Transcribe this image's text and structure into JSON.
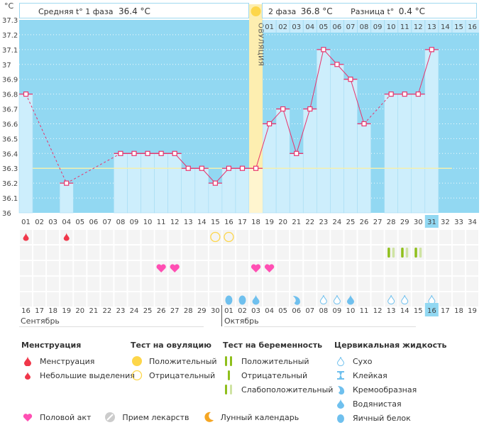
{
  "header": {
    "unit": "°C",
    "phase1_label": "Средняя t° 1 фаза",
    "phase1_value": "36.4 °C",
    "phase2_label": "2 фаза",
    "phase2_value": "36.8 °C",
    "diff_label": "Разница t°",
    "diff_value": "0.4 °C"
  },
  "ovulation_label": "ОВУЛЯЦИЯ",
  "chart_data": {
    "type": "bar",
    "title": "",
    "ylabel": "°C",
    "ylim": [
      36.0,
      37.3
    ],
    "yticks": [
      "37.3",
      "37.2",
      "37.1",
      "37",
      "36.9",
      "36.8",
      "36.7",
      "36.6",
      "36.5",
      "36.4",
      "36.3",
      "36.2",
      "36.1",
      "36"
    ],
    "coverline": 36.3,
    "ovulation_day": 18,
    "cycle_days": [
      "01",
      "02",
      "03",
      "04",
      "05",
      "06",
      "07",
      "08",
      "09",
      "10",
      "11",
      "12",
      "13",
      "14",
      "15",
      "16",
      "17",
      "18",
      "19",
      "20",
      "21",
      "22",
      "23",
      "24",
      "25",
      "26",
      "27",
      "28",
      "29",
      "30",
      "31",
      "32",
      "33",
      "34"
    ],
    "current_day": "31",
    "dpo_labels": [
      "01",
      "02",
      "03",
      "04",
      "05",
      "06",
      "07",
      "08",
      "09",
      "10",
      "11",
      "12",
      "13",
      "14",
      "15",
      "16"
    ],
    "temperatures": [
      36.8,
      null,
      null,
      36.2,
      null,
      null,
      null,
      36.4,
      36.4,
      36.4,
      36.4,
      36.4,
      36.3,
      36.3,
      36.2,
      36.3,
      36.3,
      36.3,
      36.6,
      36.7,
      36.4,
      36.7,
      37.1,
      37.0,
      36.9,
      36.6,
      null,
      36.8,
      36.8,
      36.8,
      37.1,
      null,
      null,
      null
    ],
    "dates": [
      "16",
      "17",
      "18",
      "19",
      "20",
      "21",
      "22",
      "23",
      "24",
      "25",
      "26",
      "27",
      "28",
      "29",
      "30",
      "01",
      "02",
      "03",
      "04",
      "05",
      "06",
      "07",
      "08",
      "09",
      "10",
      "11",
      "12",
      "13",
      "14",
      "15",
      "16",
      "17",
      "18",
      "19"
    ],
    "weekend_dates_idx": [
      4,
      5,
      11,
      12,
      18,
      19,
      25,
      26,
      32,
      33
    ],
    "today_date_idx": 30,
    "months": [
      {
        "name": "Сентябрь",
        "start_idx": 0
      },
      {
        "name": "Октябрь",
        "start_idx": 15
      }
    ],
    "markers": {
      "menstruation_light": [
        1,
        4
      ],
      "ovulation_test_negative": [
        15,
        16
      ],
      "pregnancy_test_weak_positive": [
        28,
        29,
        30
      ],
      "intercourse": [
        11,
        12,
        18,
        19
      ],
      "cervical_fluid": [
        {
          "day": 16,
          "type": "egg-white"
        },
        {
          "day": 17,
          "type": "egg-white"
        },
        {
          "day": 18,
          "type": "watery"
        },
        {
          "day": 21,
          "type": "creamy"
        },
        {
          "day": 23,
          "type": "dry"
        },
        {
          "day": 24,
          "type": "dry"
        },
        {
          "day": 25,
          "type": "watery"
        },
        {
          "day": 28,
          "type": "dry"
        },
        {
          "day": 29,
          "type": "dry"
        },
        {
          "day": 31,
          "type": "dry"
        }
      ]
    }
  },
  "legend": {
    "menstruation": {
      "title": "Менструация",
      "items": [
        "Менструация",
        "Небольшие выделения"
      ]
    },
    "ovulation_test": {
      "title": "Тест на овуляцию",
      "items": [
        "Положительный",
        "Отрицательный"
      ]
    },
    "pregnancy_test": {
      "title": "Тест на беременность",
      "items": [
        "Положительный",
        "Отрицательный",
        "Слабоположительный"
      ]
    },
    "cervical_fluid": {
      "title": "Цервикальная жидкость",
      "items": [
        "Сухо",
        "Клейкая",
        "Кремообразная",
        "Водянистая",
        "Яичный белок"
      ]
    },
    "bottom": [
      "Половой акт",
      "Прием лекарств",
      "Лунный календарь"
    ]
  },
  "colors": {
    "bg_blue": "#92d8f2",
    "bar_light": "#cdeefc",
    "line": "#e8336c",
    "ovulation_band": "#fdeeb0",
    "coverline": "#f3efb0",
    "weekend": "#e8336c",
    "yellow": "#fdd64a",
    "green": "#8fbf1c",
    "green_light": "#cfe3a3",
    "drop_blue": "#6fc0ee",
    "heart": "#ff4fb3",
    "blood": "#f0374a"
  }
}
